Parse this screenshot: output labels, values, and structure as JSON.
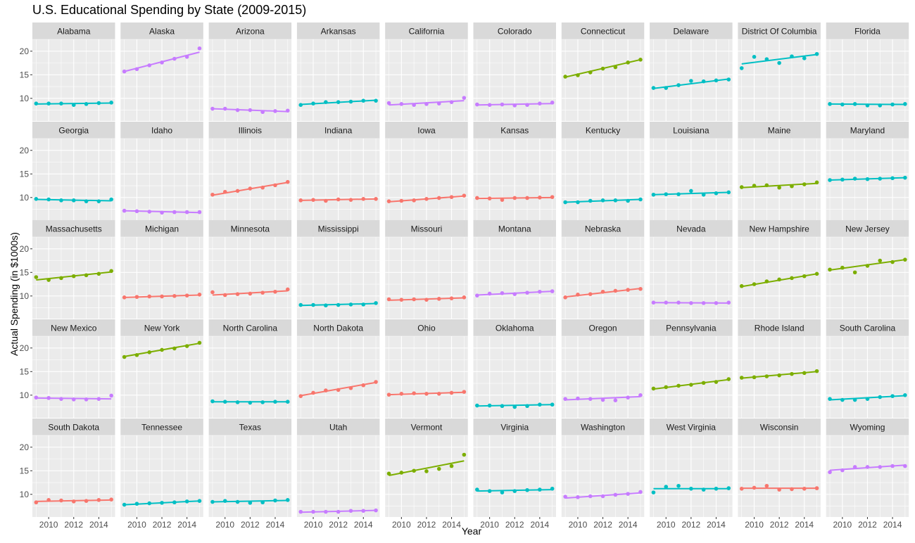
{
  "chart_data": {
    "type": "scatter",
    "title": "U.S. Educational Spending by State (2009-2015)",
    "xlabel": "Year",
    "ylabel": "Actual Spending (in $1000s)",
    "xlim": [
      2008.7,
      2015.3
    ],
    "ylim": [
      5.2,
      22.5
    ],
    "x_ticks": [
      2010,
      2012,
      2014
    ],
    "y_ticks": [
      10,
      15,
      20
    ],
    "x_tick_labels": [
      "2010",
      "2012",
      "2014"
    ],
    "y_tick_labels": [
      "10",
      "15",
      "20"
    ],
    "x": [
      2009,
      2010,
      2011,
      2012,
      2013,
      2014,
      2015
    ],
    "grid": true,
    "legend": "none",
    "facet_layout": "5 rows x 10 columns",
    "colors": {
      "red": "#F8766D",
      "green": "#7CAE00",
      "teal": "#00BFC4",
      "purple": "#C77CFF",
      "panel": "#EBEBEB",
      "grid": "#FFFFFF",
      "strip": "#D9D9D9"
    },
    "facets": [
      {
        "state": "Alabama",
        "color": "teal",
        "values": [
          8.9,
          8.9,
          8.9,
          8.6,
          8.8,
          9.0,
          9.1
        ],
        "fit": [
          8.8,
          9.0
        ]
      },
      {
        "state": "Alaska",
        "color": "purple",
        "values": [
          15.7,
          16.2,
          17.0,
          17.6,
          18.4,
          18.8,
          20.6
        ],
        "fit": [
          15.7,
          19.8
        ]
      },
      {
        "state": "Arizona",
        "color": "purple",
        "values": [
          7.8,
          7.8,
          7.5,
          7.5,
          7.1,
          7.3,
          7.4
        ],
        "fit": [
          7.8,
          7.2
        ]
      },
      {
        "state": "Arkansas",
        "color": "teal",
        "values": [
          8.6,
          8.9,
          9.2,
          9.2,
          9.3,
          9.5,
          9.5
        ],
        "fit": [
          8.7,
          9.6
        ]
      },
      {
        "state": "California",
        "color": "purple",
        "values": [
          9.0,
          8.8,
          8.6,
          8.8,
          8.9,
          9.2,
          10.1
        ],
        "fit": [
          8.6,
          9.5
        ]
      },
      {
        "state": "Colorado",
        "color": "purple",
        "values": [
          8.7,
          8.6,
          8.7,
          8.5,
          8.6,
          8.9,
          9.1
        ],
        "fit": [
          8.6,
          8.9
        ]
      },
      {
        "state": "Connecticut",
        "color": "green",
        "values": [
          14.6,
          14.9,
          15.5,
          16.3,
          16.6,
          17.6,
          18.2
        ],
        "fit": [
          14.5,
          18.2
        ]
      },
      {
        "state": "Delaware",
        "color": "teal",
        "values": [
          12.2,
          12.2,
          12.8,
          13.7,
          13.6,
          13.8,
          14.0
        ],
        "fit": [
          12.1,
          14.1
        ]
      },
      {
        "state": "District Of Columbia",
        "color": "teal",
        "values": [
          16.4,
          18.8,
          18.3,
          17.5,
          18.9,
          18.5,
          19.4
        ],
        "fit": [
          17.3,
          19.3
        ]
      },
      {
        "state": "Florida",
        "color": "teal",
        "values": [
          8.8,
          8.7,
          8.8,
          8.5,
          8.5,
          8.7,
          8.8
        ],
        "fit": [
          8.8,
          8.7
        ]
      },
      {
        "state": "Georgia",
        "color": "teal",
        "values": [
          9.7,
          9.6,
          9.4,
          9.4,
          9.2,
          9.2,
          9.6
        ],
        "fit": [
          9.6,
          9.3
        ]
      },
      {
        "state": "Idaho",
        "color": "purple",
        "values": [
          7.2,
          7.1,
          7.0,
          6.8,
          6.9,
          6.9,
          6.9
        ],
        "fit": [
          7.2,
          6.8
        ]
      },
      {
        "state": "Illinois",
        "color": "red",
        "values": [
          10.6,
          11.2,
          11.4,
          11.9,
          12.1,
          12.6,
          13.3
        ],
        "fit": [
          10.5,
          13.2
        ]
      },
      {
        "state": "Indiana",
        "color": "red",
        "values": [
          9.4,
          9.5,
          9.3,
          9.6,
          9.5,
          9.7,
          9.7
        ],
        "fit": [
          9.4,
          9.7
        ]
      },
      {
        "state": "Iowa",
        "color": "red",
        "values": [
          9.2,
          9.3,
          9.4,
          9.7,
          9.9,
          10.1,
          10.4
        ],
        "fit": [
          9.1,
          10.3
        ]
      },
      {
        "state": "Kansas",
        "color": "red",
        "values": [
          9.9,
          9.8,
          9.5,
          9.9,
          9.9,
          10.0,
          10.1
        ],
        "fit": [
          9.8,
          10.0
        ]
      },
      {
        "state": "Kentucky",
        "color": "teal",
        "values": [
          9.0,
          9.0,
          9.3,
          9.4,
          9.4,
          9.3,
          9.6
        ],
        "fit": [
          9.0,
          9.6
        ]
      },
      {
        "state": "Louisiana",
        "color": "teal",
        "values": [
          10.6,
          10.7,
          10.7,
          11.4,
          10.6,
          10.9,
          11.1
        ],
        "fit": [
          10.6,
          11.1
        ]
      },
      {
        "state": "Maine",
        "color": "green",
        "values": [
          12.2,
          12.5,
          12.6,
          12.1,
          12.4,
          12.8,
          13.2
        ],
        "fit": [
          12.1,
          13.0
        ]
      },
      {
        "state": "Maryland",
        "color": "teal",
        "values": [
          13.7,
          13.8,
          14.0,
          13.9,
          14.0,
          14.1,
          14.2
        ],
        "fit": [
          13.7,
          14.2
        ]
      },
      {
        "state": "Massachusetts",
        "color": "green",
        "values": [
          14.0,
          13.4,
          13.8,
          14.2,
          14.4,
          14.7,
          15.3
        ],
        "fit": [
          13.4,
          15.1
        ]
      },
      {
        "state": "Michigan",
        "color": "red",
        "values": [
          9.7,
          9.8,
          9.9,
          9.9,
          10.0,
          10.1,
          10.3
        ],
        "fit": [
          9.7,
          10.2
        ]
      },
      {
        "state": "Minnesota",
        "color": "red",
        "values": [
          10.8,
          10.2,
          10.4,
          10.5,
          10.7,
          10.9,
          11.4
        ],
        "fit": [
          10.2,
          11.1
        ]
      },
      {
        "state": "Mississippi",
        "color": "teal",
        "values": [
          8.1,
          8.1,
          8.0,
          8.1,
          8.2,
          8.2,
          8.5
        ],
        "fit": [
          8.0,
          8.4
        ]
      },
      {
        "state": "Missouri",
        "color": "red",
        "values": [
          9.3,
          9.2,
          9.3,
          9.2,
          9.4,
          9.5,
          9.7
        ],
        "fit": [
          9.1,
          9.6
        ]
      },
      {
        "state": "Montana",
        "color": "purple",
        "values": [
          10.1,
          10.5,
          10.6,
          10.4,
          10.7,
          10.9,
          11.0
        ],
        "fit": [
          10.2,
          11.0
        ]
      },
      {
        "state": "Nebraska",
        "color": "red",
        "values": [
          9.7,
          10.3,
          10.4,
          10.9,
          11.1,
          11.3,
          11.5
        ],
        "fit": [
          9.8,
          11.6
        ]
      },
      {
        "state": "Nevada",
        "color": "purple",
        "values": [
          8.6,
          8.6,
          8.6,
          8.5,
          8.5,
          8.5,
          8.6
        ],
        "fit": [
          8.6,
          8.5
        ]
      },
      {
        "state": "New Hampshire",
        "color": "green",
        "values": [
          12.1,
          12.5,
          13.1,
          13.5,
          13.8,
          14.2,
          14.7
        ],
        "fit": [
          12.0,
          14.7
        ]
      },
      {
        "state": "New Jersey",
        "color": "green",
        "values": [
          15.6,
          16.0,
          15.0,
          16.4,
          17.5,
          17.2,
          17.7
        ],
        "fit": [
          15.5,
          17.7
        ]
      },
      {
        "state": "New Mexico",
        "color": "purple",
        "values": [
          9.5,
          9.4,
          9.2,
          9.1,
          9.1,
          9.2,
          9.9
        ],
        "fit": [
          9.4,
          9.2
        ]
      },
      {
        "state": "New York",
        "color": "green",
        "values": [
          18.1,
          18.5,
          19.1,
          19.6,
          19.9,
          20.4,
          21.1
        ],
        "fit": [
          18.2,
          21.0
        ]
      },
      {
        "state": "North Carolina",
        "color": "teal",
        "values": [
          8.7,
          8.6,
          8.5,
          8.4,
          8.5,
          8.6,
          8.6
        ],
        "fit": [
          8.6,
          8.6
        ]
      },
      {
        "state": "North Dakota",
        "color": "red",
        "values": [
          9.8,
          10.5,
          11.0,
          11.1,
          11.5,
          12.1,
          12.8
        ],
        "fit": [
          9.9,
          12.7
        ]
      },
      {
        "state": "Ohio",
        "color": "red",
        "values": [
          10.1,
          10.3,
          10.4,
          10.3,
          10.3,
          10.5,
          10.7
        ],
        "fit": [
          10.1,
          10.6
        ]
      },
      {
        "state": "Oklahoma",
        "color": "teal",
        "values": [
          7.8,
          7.8,
          7.7,
          7.5,
          7.7,
          8.0,
          8.0
        ],
        "fit": [
          7.7,
          8.0
        ]
      },
      {
        "state": "Oregon",
        "color": "purple",
        "values": [
          9.2,
          9.3,
          9.2,
          9.0,
          8.9,
          9.5,
          10.0
        ],
        "fit": [
          9.0,
          9.7
        ]
      },
      {
        "state": "Pennsylvania",
        "color": "green",
        "values": [
          11.4,
          11.7,
          12.0,
          12.2,
          12.6,
          12.8,
          13.4
        ],
        "fit": [
          11.3,
          13.3
        ]
      },
      {
        "state": "Rhode Island",
        "color": "green",
        "values": [
          13.7,
          13.8,
          14.0,
          14.2,
          14.5,
          14.7,
          15.1
        ],
        "fit": [
          13.6,
          15.0
        ]
      },
      {
        "state": "South Carolina",
        "color": "teal",
        "values": [
          9.2,
          9.0,
          9.0,
          9.2,
          9.6,
          9.8,
          10.0
        ],
        "fit": [
          9.0,
          9.9
        ]
      },
      {
        "state": "South Dakota",
        "color": "red",
        "values": [
          8.3,
          8.8,
          8.7,
          8.5,
          8.6,
          8.8,
          8.9
        ],
        "fit": [
          8.5,
          8.8
        ]
      },
      {
        "state": "Tennessee",
        "color": "teal",
        "values": [
          7.8,
          8.0,
          8.1,
          8.2,
          8.3,
          8.5,
          8.6
        ],
        "fit": [
          7.8,
          8.6
        ]
      },
      {
        "state": "Texas",
        "color": "teal",
        "values": [
          8.4,
          8.6,
          8.4,
          8.2,
          8.3,
          8.7,
          8.8
        ],
        "fit": [
          8.4,
          8.7
        ]
      },
      {
        "state": "Utah",
        "color": "purple",
        "values": [
          6.3,
          6.3,
          6.3,
          6.3,
          6.5,
          6.5,
          6.6
        ],
        "fit": [
          6.2,
          6.6
        ]
      },
      {
        "state": "Vermont",
        "color": "green",
        "values": [
          14.4,
          14.6,
          15.0,
          14.9,
          15.4,
          16.0,
          18.4
        ],
        "fit": [
          14.0,
          17.1
        ]
      },
      {
        "state": "Virginia",
        "color": "teal",
        "values": [
          11.0,
          10.7,
          10.4,
          10.7,
          10.9,
          11.0,
          11.2
        ],
        "fit": [
          10.7,
          11.0
        ]
      },
      {
        "state": "Washington",
        "color": "purple",
        "values": [
          9.5,
          9.4,
          9.6,
          9.6,
          9.9,
          10.1,
          10.5
        ],
        "fit": [
          9.2,
          10.3
        ]
      },
      {
        "state": "West Virginia",
        "color": "teal",
        "values": [
          10.4,
          11.6,
          11.8,
          11.2,
          11.0,
          11.2,
          11.3
        ],
        "fit": [
          11.2,
          11.2
        ]
      },
      {
        "state": "Wisconsin",
        "color": "red",
        "values": [
          11.2,
          11.4,
          11.8,
          11.0,
          11.1,
          11.2,
          11.3
        ],
        "fit": [
          11.3,
          11.3
        ]
      },
      {
        "state": "Wyoming",
        "color": "purple",
        "values": [
          14.7,
          15.1,
          15.8,
          15.8,
          15.8,
          16.0,
          16.0
        ],
        "fit": [
          15.1,
          16.2
        ]
      }
    ]
  }
}
